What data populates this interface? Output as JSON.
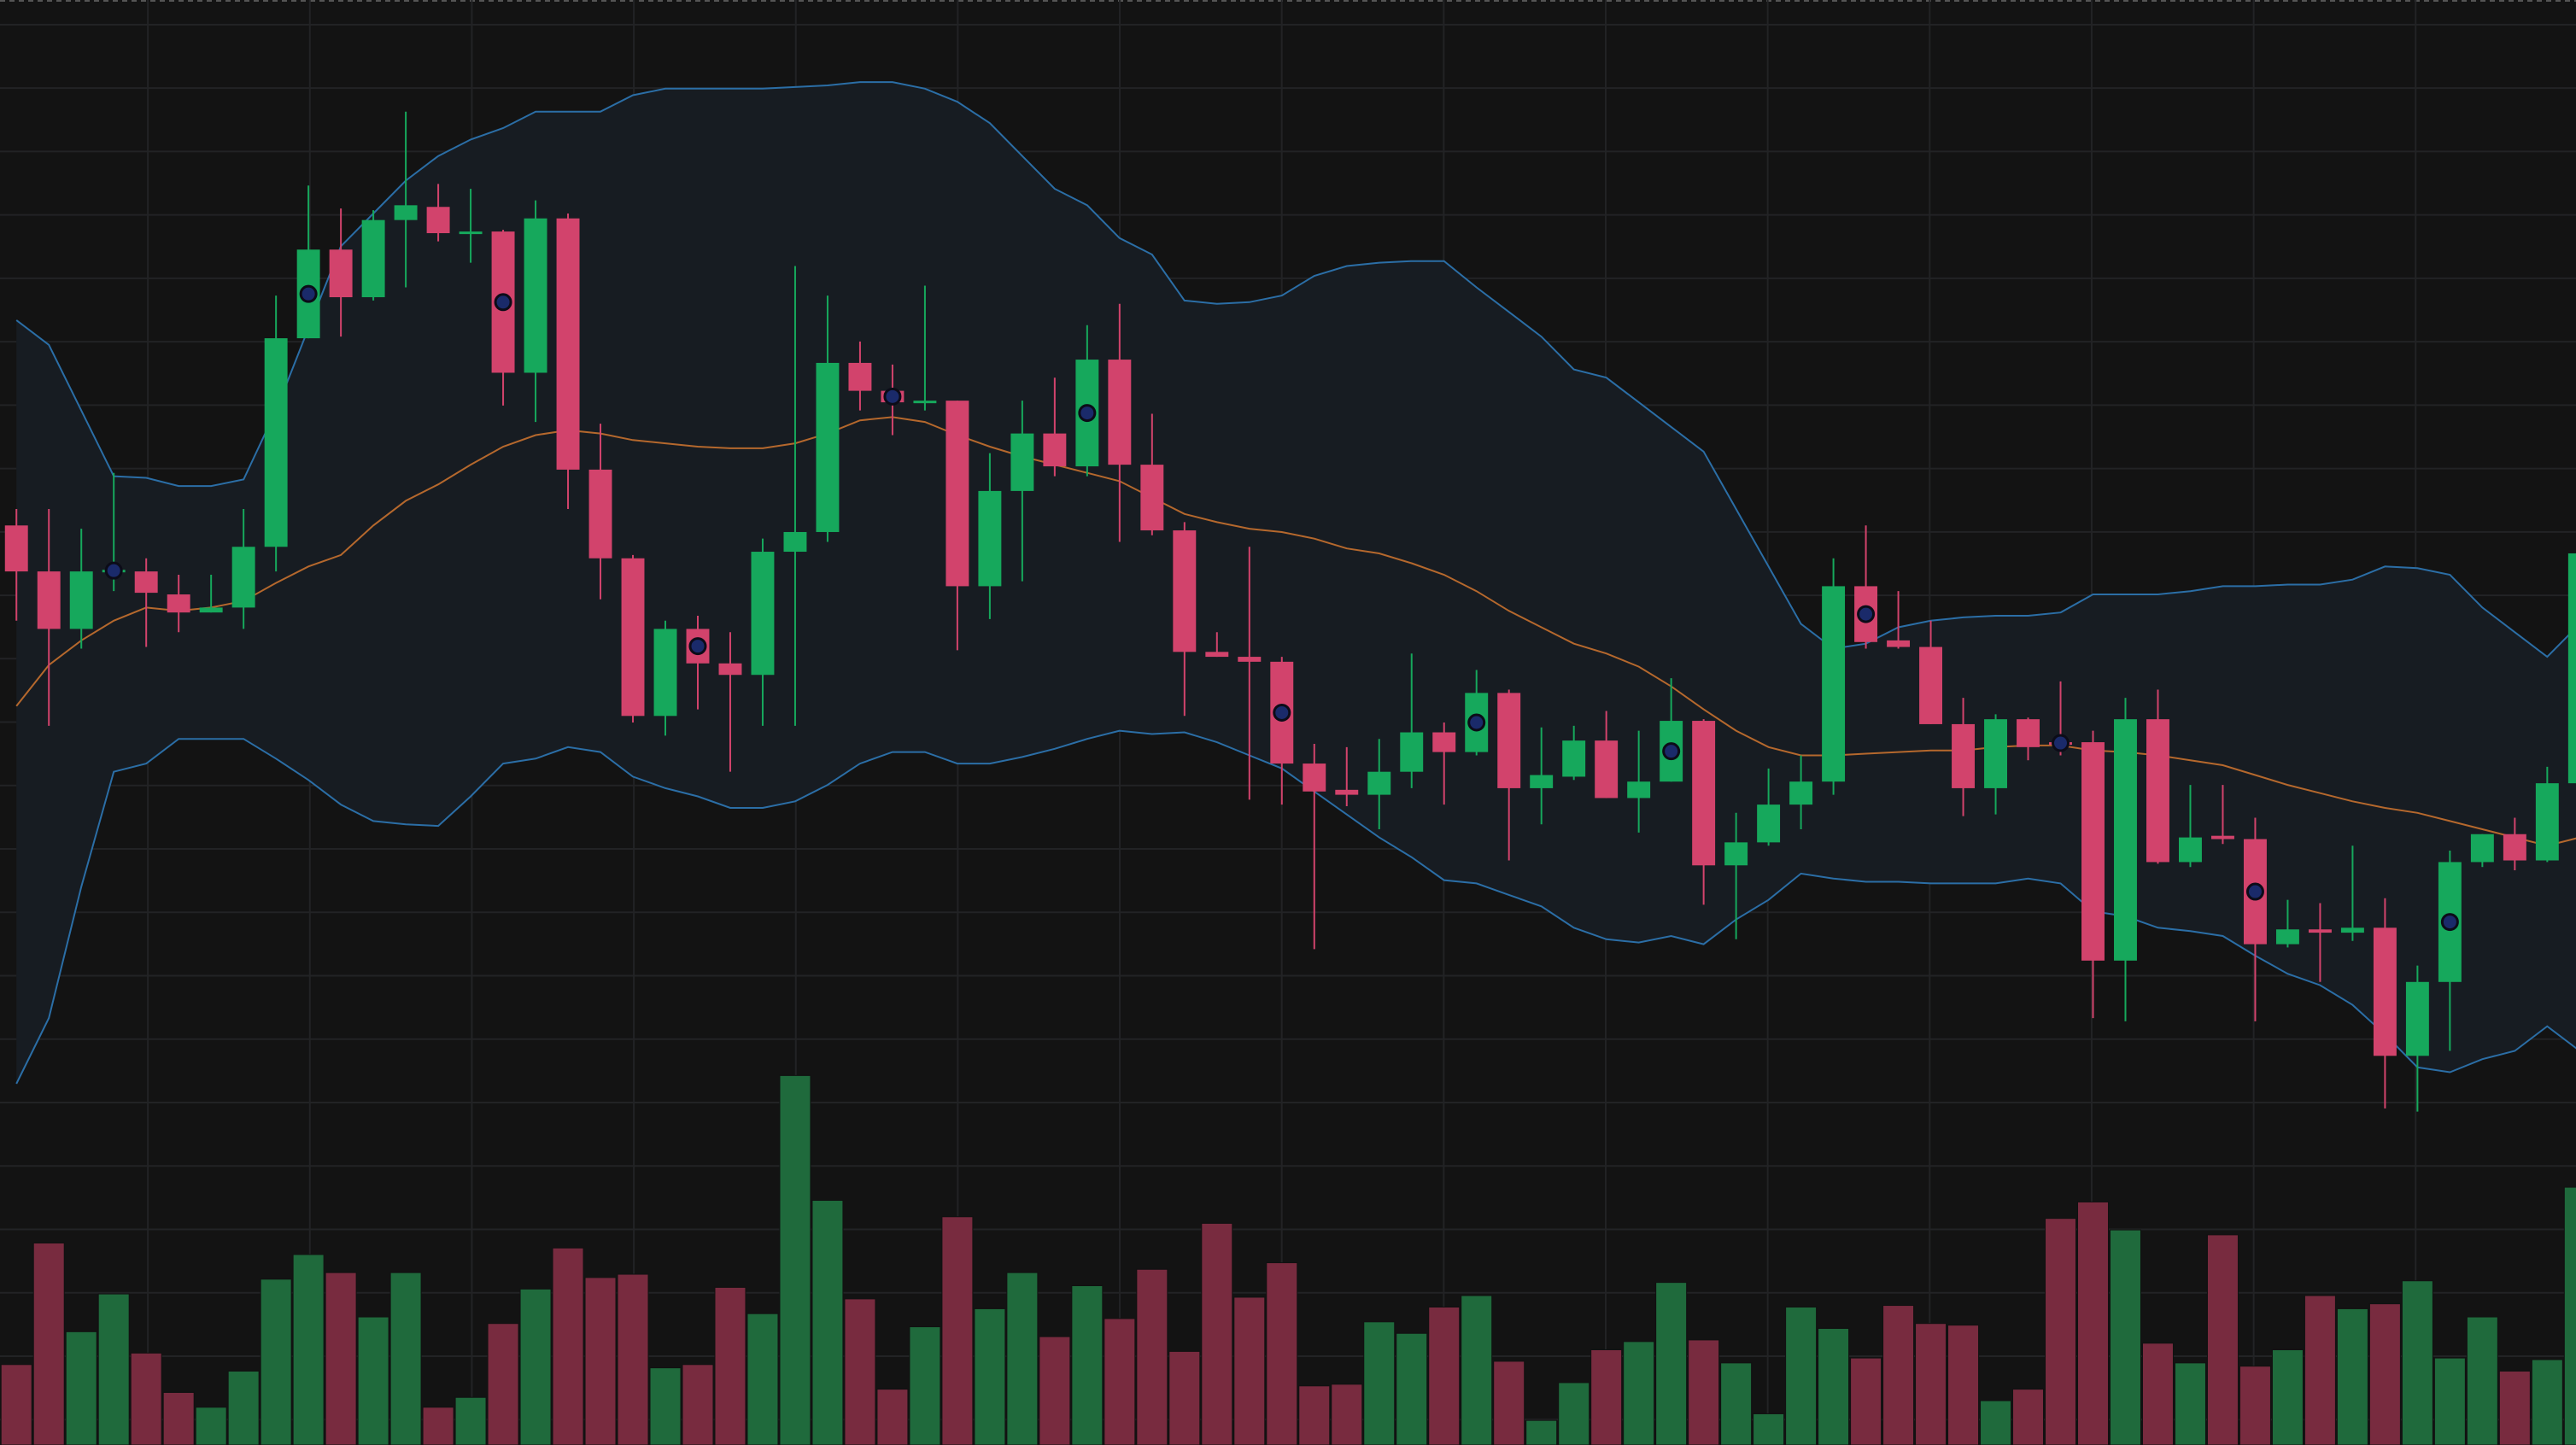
{
  "chart_data": {
    "type": "candlestick",
    "ylim": [
      0,
      880
    ],
    "y2lim": [
      0,
      880
    ],
    "grid": true,
    "up_color": "#16a85c",
    "down_color": "#d2436c",
    "volume_up_color": "#1f6a3c",
    "volume_down_color": "#782b3f",
    "band_fill": "#171c22",
    "band_color": "#2b6ea6",
    "middle_color": "#b5682d",
    "open": [
      560,
      532,
      497,
      532,
      532,
      518,
      507,
      510,
      547,
      674,
      728,
      699,
      746,
      754,
      738,
      739,
      653,
      747,
      594,
      540,
      444,
      497,
      476,
      469,
      544,
      556,
      659,
      642,
      635,
      636,
      523,
      581,
      616,
      596,
      661,
      597,
      557,
      483,
      480,
      477,
      415,
      399,
      396,
      410,
      434,
      422,
      458,
      400,
      407,
      429,
      394,
      404,
      441,
      353,
      367,
      390,
      404,
      523,
      490,
      486,
      439,
      400,
      442,
      428,
      428,
      295,
      442,
      355,
      371,
      369,
      305,
      314,
      312,
      315,
      237,
      282,
      355,
      372,
      356,
      403
    ],
    "high": [
      570,
      570,
      558,
      592,
      540,
      530,
      530,
      570,
      700,
      767,
      753,
      752,
      812,
      768,
      765,
      740,
      758,
      750,
      622,
      542,
      502,
      505,
      495,
      552,
      718,
      700,
      672,
      658,
      706,
      636,
      604,
      636,
      650,
      682,
      695,
      628,
      562,
      495,
      547,
      480,
      427,
      425,
      430,
      482,
      440,
      472,
      460,
      437,
      438,
      447,
      435,
      467,
      442,
      385,
      412,
      420,
      540,
      560,
      520,
      502,
      455,
      445,
      443,
      465,
      435,
      455,
      460,
      402,
      402,
      382,
      332,
      330,
      365,
      333,
      292,
      362,
      372,
      382,
      413,
      543
    ],
    "low": [
      502,
      438,
      485,
      520,
      486,
      495,
      507,
      497,
      532,
      674,
      675,
      697,
      705,
      733,
      720,
      633,
      623,
      570,
      515,
      440,
      432,
      448,
      410,
      438,
      438,
      550,
      630,
      615,
      630,
      484,
      503,
      526,
      590,
      590,
      550,
      554,
      444,
      480,
      393,
      390,
      302,
      389,
      375,
      400,
      390,
      420,
      356,
      378,
      405,
      394,
      373,
      404,
      329,
      308,
      365,
      375,
      396,
      485,
      485,
      439,
      383,
      384,
      417,
      420,
      260,
      258,
      354,
      352,
      366,
      258,
      303,
      282,
      307,
      205,
      203,
      240,
      352,
      350,
      355,
      400
    ],
    "close": [
      532,
      497,
      532,
      533,
      519,
      507,
      510,
      547,
      674,
      728,
      699,
      746,
      755,
      738,
      739,
      653,
      747,
      594,
      540,
      444,
      497,
      476,
      469,
      544,
      556,
      659,
      642,
      635,
      636,
      523,
      581,
      616,
      596,
      661,
      597,
      557,
      483,
      480,
      477,
      415,
      398,
      396,
      410,
      434,
      422,
      458,
      400,
      408,
      429,
      394,
      404,
      441,
      353,
      367,
      390,
      404,
      523,
      489,
      486,
      439,
      400,
      442,
      425,
      427,
      295,
      442,
      355,
      370,
      369,
      305,
      314,
      312,
      315,
      237,
      282,
      355,
      372,
      356,
      403,
      543
    ],
    "volume": [
      49,
      123,
      69,
      92,
      56,
      32,
      23,
      45,
      101,
      116,
      105,
      78,
      105,
      23,
      29,
      74,
      95,
      120,
      102,
      104,
      47,
      49,
      96,
      80,
      225,
      149,
      89,
      34,
      72,
      139,
      83,
      105,
      66,
      97,
      77,
      107,
      57,
      135,
      90,
      111,
      36,
      37,
      75,
      68,
      84,
      91,
      51,
      15,
      38,
      58,
      63,
      99,
      64,
      50,
      19,
      84,
      71,
      53,
      85,
      74,
      73,
      27,
      34,
      138,
      148,
      131,
      62,
      50,
      128,
      48,
      58,
      91,
      83,
      86,
      100,
      53,
      78,
      45,
      52,
      157
    ],
    "upper": [
      685,
      670,
      630,
      590,
      589,
      584,
      584,
      588,
      630,
      680,
      730,
      750,
      770,
      785,
      795,
      802,
      812,
      812,
      812,
      822,
      826,
      826,
      826,
      826,
      827,
      828,
      830,
      830,
      826,
      818,
      805,
      785,
      765,
      755,
      735,
      725,
      697,
      695,
      696,
      700,
      712,
      718,
      720,
      721,
      721,
      705,
      690,
      675,
      655,
      650,
      635,
      620,
      605,
      570,
      535,
      500,
      485,
      488,
      498,
      502,
      504,
      505,
      505,
      507,
      518,
      518,
      518,
      520,
      523,
      523,
      524,
      524,
      527,
      535,
      534,
      530,
      510,
      495,
      480,
      500
    ],
    "middle": [
      450,
      475,
      490,
      502,
      510,
      508,
      510,
      514,
      525,
      535,
      542,
      560,
      575,
      585,
      597,
      608,
      615,
      618,
      616,
      612,
      610,
      608,
      607,
      607,
      610,
      616,
      624,
      626,
      623,
      615,
      608,
      602,
      597,
      592,
      587,
      577,
      567,
      562,
      558,
      556,
      552,
      546,
      543,
      537,
      530,
      520,
      508,
      498,
      488,
      482,
      474,
      462,
      448,
      435,
      425,
      420,
      420,
      421,
      422,
      423,
      423,
      425,
      426,
      426,
      423,
      422,
      420,
      417,
      414,
      408,
      402,
      397,
      392,
      388,
      385,
      380,
      375,
      370,
      365,
      370
    ],
    "lower": [
      220,
      260,
      340,
      410,
      415,
      430,
      430,
      430,
      418,
      405,
      390,
      380,
      378,
      377,
      395,
      415,
      418,
      425,
      422,
      407,
      400,
      395,
      388,
      388,
      392,
      402,
      415,
      422,
      422,
      415,
      415,
      419,
      424,
      430,
      435,
      433,
      434,
      428,
      420,
      412,
      398,
      384,
      370,
      358,
      344,
      342,
      335,
      328,
      315,
      308,
      306,
      310,
      305,
      320,
      332,
      348,
      345,
      343,
      343,
      342,
      342,
      342,
      345,
      342,
      325,
      322,
      315,
      313,
      310,
      298,
      287,
      280,
      268,
      250,
      230,
      227,
      235,
      240,
      255,
      240
    ],
    "signal_markers": [
      3,
      9,
      15,
      21,
      27,
      33,
      39,
      45,
      51,
      57,
      63,
      69,
      75
    ]
  }
}
